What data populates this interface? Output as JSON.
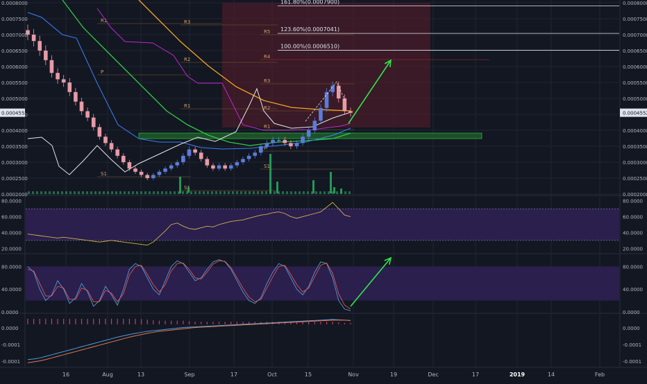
{
  "colors": {
    "background": "#131722",
    "grid": "#1f2433",
    "axis_text": "#b2b5be",
    "candle_up": "#5b7cd9",
    "candle_down": "#e89aa5",
    "oscillator_band": "#2a1f4d",
    "arrow": "#2ee84a",
    "fib_text": "#e0e3eb",
    "pivot_text": "#d0a26a",
    "ema_orange": "#f5a623",
    "ema_green": "#2ecc40",
    "band_magenta": "#c026d3",
    "band_blue": "#3b82f6",
    "line_white": "#e5e7eb",
    "macd_line": "#4f9dde",
    "signal_line": "#e07a4b",
    "hist": "#d8346c",
    "volume": "#26a65b",
    "resistance_zone": "#5a1e2a",
    "support_zone": "#1e5a2a"
  },
  "chart_data": [
    {
      "type": "candlestick",
      "pair": "",
      "x_labels": [
        "16",
        "Aug",
        "13",
        "Sep",
        "17",
        "Oct",
        "15",
        "Nov",
        "19",
        "Dec",
        "17",
        "2019",
        "14",
        "Feb"
      ],
      "y_axis_labels": [
        "0.0008000",
        "0.0007500",
        "0.0007000",
        "0.0006500",
        "0.0006000",
        "0.0005500",
        "0.0005000",
        "0.0004500",
        "0.0004000",
        "0.0003500",
        "0.0003000",
        "0.0002500",
        "0.0002000"
      ],
      "ylim": [
        0.0002,
        0.0008
      ],
      "last_price_label": "0.0004552",
      "fibonacci": [
        {
          "label": "161.80%(0.0007900)",
          "value": 0.00079
        },
        {
          "label": "123.60%(0.0007041)",
          "value": 0.0007041
        },
        {
          "label": "100.00%(0.0006510)",
          "value": 0.000651
        }
      ],
      "pivot_labels": [
        "R1",
        "R3",
        "R5",
        "R4",
        "R2",
        "P",
        "R3",
        "R1",
        "R2",
        "R1",
        "P",
        "S1",
        "S1",
        "S1"
      ],
      "candles_close": [
        0.0007,
        0.00068,
        0.00065,
        0.00062,
        0.00058,
        0.00056,
        0.00055,
        0.00052,
        0.00049,
        0.00046,
        0.00044,
        0.00041,
        0.00038,
        0.00036,
        0.00034,
        0.00032,
        0.0003,
        0.00028,
        0.00027,
        0.00026,
        0.00025,
        0.00026,
        0.00027,
        0.00028,
        0.00029,
        0.0003,
        0.00032,
        0.00034,
        0.00033,
        0.00031,
        0.00029,
        0.00028,
        0.00029,
        0.00028,
        0.00029,
        0.0003,
        0.00031,
        0.00032,
        0.00033,
        0.00035,
        0.00036,
        0.00037,
        0.00037,
        0.00036,
        0.00035,
        0.00036,
        0.00038,
        0.0004,
        0.00043,
        0.00047,
        0.00052,
        0.00054,
        0.0005,
        0.00046,
        0.000455
      ]
    },
    {
      "type": "line",
      "name": "",
      "y_axis_labels": [
        "80.0000",
        "60.0000",
        "40.0000",
        "20.0000"
      ],
      "ylim": [
        15,
        85
      ],
      "band": [
        30,
        70
      ],
      "values": [
        38,
        37,
        36,
        35,
        34,
        33,
        34,
        33,
        32,
        31,
        30,
        29,
        28,
        29,
        30,
        29,
        28,
        27,
        26,
        25,
        24,
        28,
        35,
        42,
        50,
        52,
        48,
        45,
        44,
        46,
        48,
        47,
        50,
        52,
        54,
        55,
        56,
        58,
        60,
        62,
        63,
        65,
        66,
        64,
        60,
        58,
        60,
        62,
        64,
        66,
        72,
        78,
        70,
        62,
        60
      ]
    },
    {
      "type": "line",
      "name": "",
      "y_axis_labels": [
        "80.0000",
        "40.0000",
        "0.0000"
      ],
      "ylim": [
        0,
        100
      ],
      "band": [
        20,
        80
      ],
      "series_k": [
        80,
        70,
        40,
        20,
        30,
        55,
        40,
        15,
        25,
        50,
        35,
        10,
        20,
        45,
        30,
        12,
        40,
        75,
        85,
        80,
        60,
        40,
        30,
        55,
        80,
        90,
        85,
        70,
        55,
        60,
        75,
        88,
        92,
        88,
        75,
        55,
        35,
        20,
        15,
        25,
        50,
        70,
        85,
        80,
        60,
        40,
        30,
        45,
        70,
        88,
        85,
        60,
        20,
        5,
        2
      ],
      "series_d": [
        75,
        72,
        50,
        28,
        28,
        45,
        42,
        22,
        22,
        42,
        38,
        18,
        18,
        38,
        33,
        18,
        32,
        65,
        80,
        82,
        66,
        48,
        35,
        48,
        72,
        85,
        86,
        75,
        60,
        58,
        70,
        84,
        90,
        89,
        78,
        60,
        42,
        26,
        18,
        22,
        42,
        62,
        80,
        82,
        66,
        48,
        35,
        42,
        62,
        82,
        86,
        68,
        32,
        12,
        5
      ]
    },
    {
      "type": "line",
      "name": "",
      "y_axis_labels": [
        "0.0000",
        "-0.0001",
        "-0.0001"
      ],
      "ylim": [
        -0.00013,
        3e-05
      ],
      "macd": [
        -0.00011,
        -0.000108,
        -0.000105,
        -0.0001,
        -9.5e-05,
        -9e-05,
        -8.5e-05,
        -8e-05,
        -7.5e-05,
        -7e-05,
        -6.5e-05,
        -6e-05,
        -5.5e-05,
        -5e-05,
        -4.5e-05,
        -4e-05,
        -3.6e-05,
        -3.2e-05,
        -2.8e-05,
        -2.5e-05,
        -2.2e-05,
        -2e-05,
        -1.8e-05,
        -1.6e-05,
        -1.4e-05,
        -1.2e-05,
        -1e-05,
        -9e-06,
        -8e-06,
        -7e-06,
        -6e-06,
        -5e-06,
        -4e-06,
        -3e-06,
        -2e-06,
        -1e-06,
        0.0,
        1e-06,
        2e-06,
        3e-06,
        4e-06,
        5e-06,
        6e-06,
        7e-06,
        8e-06,
        9e-06,
        1e-05,
        1.1e-05,
        1.2e-05,
        1.3e-05,
        1.4e-05,
        1.5e-05,
        1.4e-05,
        1.3e-05,
        1.2e-05
      ],
      "signal": [
        -0.00012,
        -0.000117,
        -0.000114,
        -0.00011,
        -0.000105,
        -0.0001,
        -9.5e-05,
        -9e-05,
        -8.5e-05,
        -8e-05,
        -7.5e-05,
        -7e-05,
        -6.5e-05,
        -6e-05,
        -5.5e-05,
        -5e-05,
        -4.5e-05,
        -4e-05,
        -3.6e-05,
        -3.2e-05,
        -2.8e-05,
        -2.5e-05,
        -2.2e-05,
        -2e-05,
        -1.8e-05,
        -1.6e-05,
        -1.4e-05,
        -1.2e-05,
        -1e-05,
        -9e-06,
        -8e-06,
        -7e-06,
        -6e-06,
        -5e-06,
        -4e-06,
        -3e-06,
        -2e-06,
        -1e-06,
        0.0,
        1e-06,
        2e-06,
        3e-06,
        4e-06,
        5e-06,
        6e-06,
        7e-06,
        8e-06,
        9e-06,
        1e-05,
        1.1e-05,
        1.2e-05,
        1.3e-05,
        1.3e-05,
        1.3e-05,
        1.2e-05
      ]
    }
  ]
}
